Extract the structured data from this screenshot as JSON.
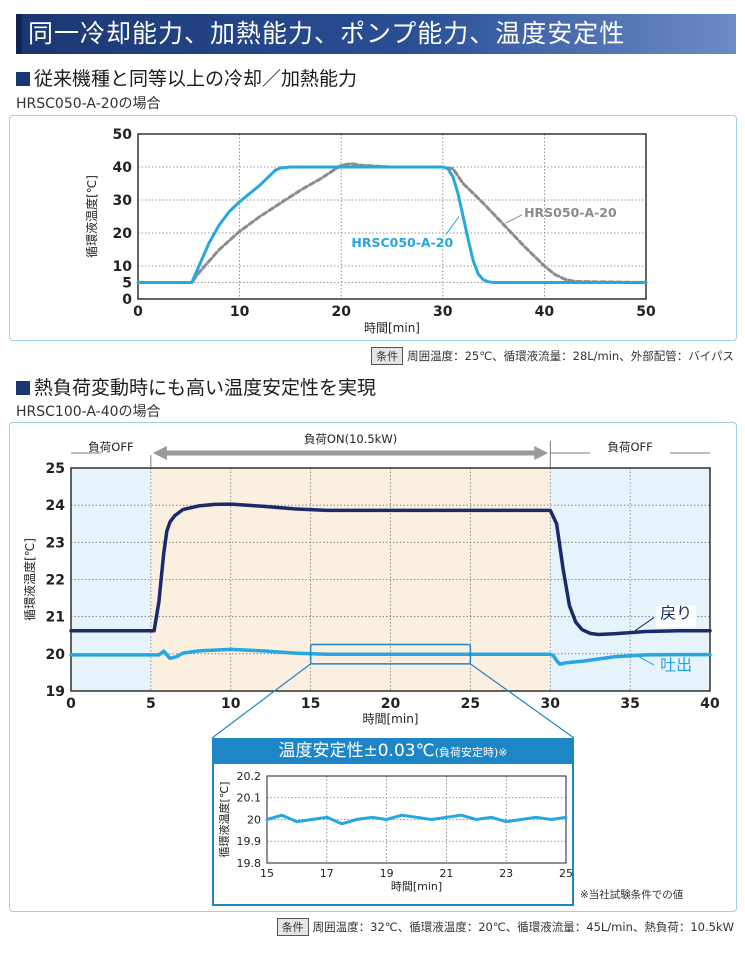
{
  "page": {
    "title": "同一冷却能力、加熱能力、ポンプ能力、温度安定性"
  },
  "section1": {
    "heading": "従来機種と同等以上の冷却／加熱能力",
    "subheading": "HRSC050-A-20の場合",
    "condition_tag": "条件",
    "condition_text": "周囲温度：25℃、循環液流量：28L/min、外部配管：バイパス"
  },
  "section2": {
    "heading": "熱負荷変動時にも高い温度安定性を実現",
    "subheading": "HRSC100-A-40の場合",
    "condition_tag": "条件",
    "condition_text": "周囲温度：32℃、循環液温度：20℃、循環液流量：45L/min、熱負荷：10.5kW",
    "load_off_left": "負荷OFF",
    "load_on": "負荷ON(10.5kW)",
    "load_off_right": "負荷OFF",
    "inset_title": "温度安定性±0.03℃",
    "inset_title_note": "(負荷安定時)",
    "inset_title_mark": "※",
    "footnote": "※当社試験条件での値"
  },
  "chart_data": [
    {
      "type": "line",
      "xlabel": "時間[min]",
      "ylabel": "循環液温度[℃]",
      "xlim": [
        0,
        50
      ],
      "ylim": [
        0,
        50
      ],
      "xticks": [
        "0",
        "10",
        "20",
        "30",
        "40",
        "50"
      ],
      "yticks": [
        "0",
        "5",
        "10",
        "20",
        "30",
        "40",
        "50"
      ],
      "grid": true,
      "series": [
        {
          "name": "HRSC050-A-20",
          "color": "#27a7e1",
          "style": "solid",
          "x": [
            0,
            5.3,
            6,
            7,
            8,
            9,
            10,
            11,
            12,
            13,
            13.5,
            14,
            15,
            20,
            25,
            30,
            30.5,
            31,
            31.5,
            32,
            32.5,
            33,
            33.5,
            34,
            34.5,
            35,
            40,
            50
          ],
          "y": [
            5,
            5,
            10,
            17,
            22.5,
            26.5,
            29.5,
            32,
            34.5,
            37.5,
            39,
            39.7,
            40,
            40,
            40,
            40,
            39.5,
            37,
            32,
            25,
            18,
            11.5,
            7.5,
            5.8,
            5.2,
            5,
            5,
            5
          ]
        },
        {
          "name": "HRS050-A-20",
          "color": "#8c8c8c",
          "style": "dashed",
          "x": [
            0,
            5.3,
            6,
            8,
            10,
            12,
            14,
            16,
            18,
            20,
            21,
            22,
            25,
            30,
            31,
            32,
            34,
            36,
            38,
            40,
            41,
            42,
            43,
            50
          ],
          "y": [
            5,
            5,
            8,
            15,
            20.5,
            25,
            29,
            33,
            36.5,
            40.5,
            41,
            40.5,
            40,
            40,
            39.5,
            35,
            29,
            22.5,
            16,
            10,
            7.5,
            6,
            5.3,
            5
          ]
        }
      ]
    },
    {
      "type": "line",
      "xlabel": "時間[min]",
      "ylabel": "循環液温度[℃]",
      "xlim": [
        0,
        40
      ],
      "ylim": [
        19,
        25
      ],
      "xticks": [
        "0",
        "5",
        "10",
        "15",
        "20",
        "25",
        "30",
        "35",
        "40"
      ],
      "yticks": [
        "19",
        "20",
        "21",
        "22",
        "23",
        "24",
        "25"
      ],
      "grid": true,
      "annotations": [
        "戻り",
        "吐出"
      ],
      "series": [
        {
          "name": "戻り",
          "color": "#1b2a6b",
          "x": [
            0,
            3,
            5.2,
            5.5,
            5.8,
            6.0,
            6.2,
            6.5,
            7,
            8,
            9,
            10,
            12,
            14,
            16,
            20,
            25,
            30,
            30.4,
            30.8,
            31.2,
            31.6,
            32,
            32.5,
            33,
            34,
            36,
            38,
            40
          ],
          "y": [
            20.62,
            20.62,
            20.62,
            21.4,
            22.7,
            23.3,
            23.55,
            23.72,
            23.88,
            23.98,
            24.02,
            24.03,
            23.97,
            23.9,
            23.86,
            23.86,
            23.86,
            23.86,
            23.5,
            22.3,
            21.3,
            20.85,
            20.65,
            20.55,
            20.52,
            20.54,
            20.6,
            20.62,
            20.62
          ]
        },
        {
          "name": "吐出",
          "color": "#27a7e1",
          "x": [
            0,
            3,
            5.5,
            5.8,
            6.2,
            6.6,
            7,
            8,
            9,
            10,
            12,
            14,
            16,
            20,
            25,
            30,
            30.2,
            30.4,
            30.6,
            31,
            32,
            33,
            34,
            36,
            38,
            40
          ],
          "y": [
            19.97,
            19.97,
            19.97,
            20.07,
            19.88,
            19.92,
            20.02,
            20.08,
            20.1,
            20.12,
            20.08,
            20.02,
            19.99,
            19.99,
            19.99,
            19.99,
            19.95,
            19.82,
            19.72,
            19.76,
            19.8,
            19.86,
            19.92,
            19.97,
            19.98,
            19.98
          ]
        }
      ],
      "load_off_range": [
        [
          0,
          5
        ],
        [
          30,
          40
        ]
      ],
      "load_on_range": [
        5,
        30
      ]
    },
    {
      "type": "line",
      "xlabel": "時間[min]",
      "ylabel": "循環液温度[℃]",
      "xlim": [
        15,
        25
      ],
      "ylim": [
        19.8,
        20.2
      ],
      "xticks": [
        "15",
        "17",
        "19",
        "21",
        "23",
        "25"
      ],
      "yticks": [
        "19.8",
        "19.9",
        "20",
        "20.1",
        "20.2"
      ],
      "grid": true,
      "series": [
        {
          "name": "吐出",
          "color": "#27a7e1",
          "x": [
            15,
            15.5,
            16,
            16.5,
            17,
            17.5,
            18,
            18.5,
            19,
            19.5,
            20,
            20.5,
            21,
            21.5,
            22,
            22.5,
            23,
            23.5,
            24,
            24.5,
            25
          ],
          "y": [
            20.0,
            20.02,
            19.99,
            20.0,
            20.01,
            19.98,
            20.0,
            20.01,
            20.0,
            20.02,
            20.01,
            20.0,
            20.01,
            20.02,
            20.0,
            20.01,
            19.99,
            20.0,
            20.01,
            20.0,
            20.01
          ]
        }
      ]
    }
  ]
}
